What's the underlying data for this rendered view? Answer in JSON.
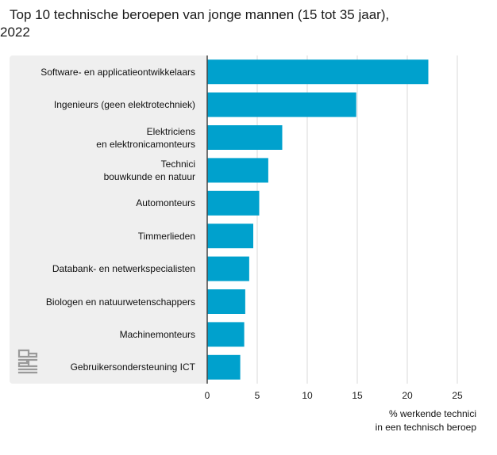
{
  "chart_data": {
    "type": "bar",
    "title": "Top 10 technische beroepen van jonge mannen (15 tot 35 jaar), 2022",
    "categories": [
      [
        "Software- en applicatieontwikkelaars"
      ],
      [
        "Ingenieurs (geen elektrotechniek)"
      ],
      [
        "Elektriciens",
        "en elektronicamonteurs"
      ],
      [
        "Technici",
        "bouwkunde en natuur"
      ],
      [
        "Automonteurs"
      ],
      [
        "Timmerlieden"
      ],
      [
        "Databank- en netwerkspecialisten"
      ],
      [
        "Biologen en natuurwetenschappers"
      ],
      [
        "Machinemonteurs"
      ],
      [
        "Gebruikersondersteuning ICT"
      ]
    ],
    "values": [
      22.1,
      14.9,
      7.5,
      6.1,
      5.2,
      4.6,
      4.2,
      3.8,
      3.7,
      3.3
    ],
    "xlabel": [
      "% werkende technici",
      "in een technisch beroep"
    ],
    "xlim": [
      0,
      25
    ],
    "xticks": [
      0,
      5,
      10,
      15,
      20,
      25
    ],
    "grid": true,
    "bar_color": "#00a1cd"
  },
  "logo": {
    "name": "cbs-logo",
    "text": "cbs"
  }
}
